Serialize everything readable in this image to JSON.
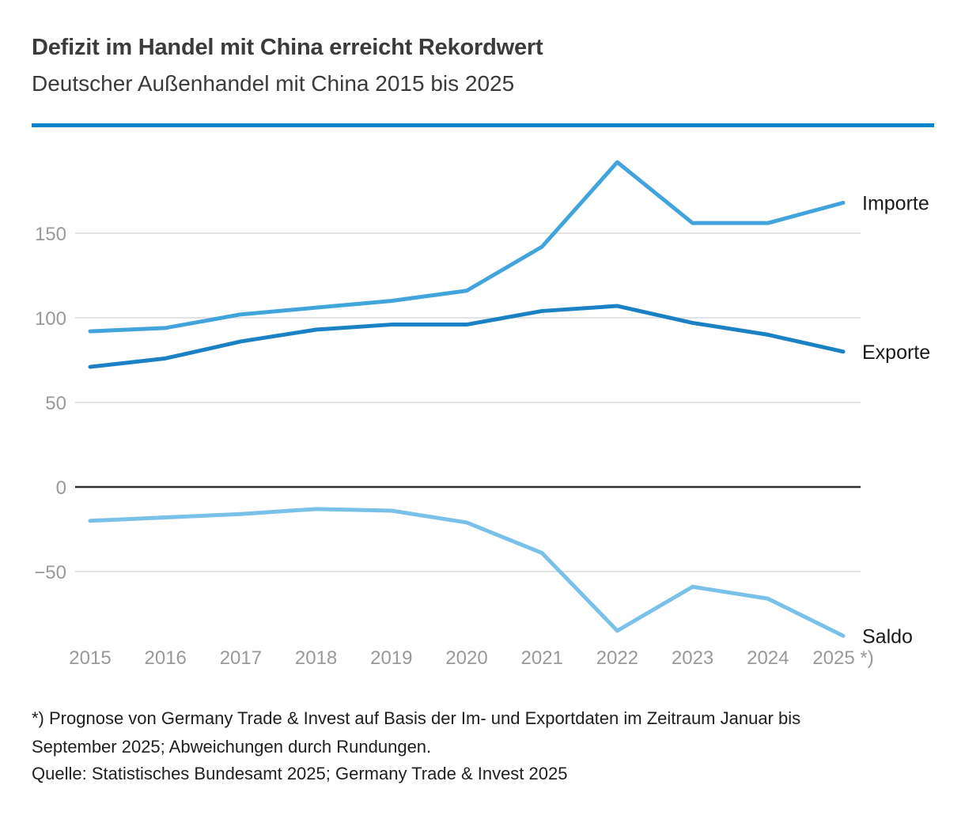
{
  "header": {
    "title": "Defizit im Handel mit China erreicht Rekordwert",
    "subtitle": "Deutscher Außenhandel mit China 2015 bis 2025"
  },
  "chart_data": {
    "type": "line",
    "categories": [
      "2015",
      "2016",
      "2017",
      "2018",
      "2019",
      "2020",
      "2021",
      "2022",
      "2023",
      "2024",
      "2025"
    ],
    "x_tick_labels": [
      "2015",
      "2016",
      "2017",
      "2018",
      "2019",
      "2020",
      "2021",
      "2022",
      "2023",
      "2024",
      "2025 *)"
    ],
    "y_ticks": [
      150,
      100,
      50,
      0,
      -50
    ],
    "ylim": [
      -100,
      200
    ],
    "grid": "horizontal-only",
    "zero_line": true,
    "legend_position": "line-end-labels-right",
    "series": [
      {
        "name": "Importe",
        "color": "#42a4dc",
        "values": [
          92,
          94,
          102,
          106,
          110,
          116,
          142,
          192,
          156,
          156,
          168
        ]
      },
      {
        "name": "Exporte",
        "color": "#1b81c5",
        "values": [
          71,
          76,
          86,
          93,
          96,
          96,
          104,
          107,
          97,
          90,
          80
        ]
      },
      {
        "name": "Saldo",
        "color": "#79c1e8",
        "values": [
          -20,
          -18,
          -16,
          -13,
          -14,
          -21,
          -39,
          -85,
          -59,
          -66,
          -88
        ]
      }
    ]
  },
  "footnote": "*) Prognose von Germany Trade & Invest auf Basis der Im- und Exportdaten im Zeitraum Januar bis September 2025; Abweichungen durch Rundungen.",
  "source": "Quelle: Statistisches Bundesamt 2025; Germany Trade & Invest 2025",
  "colors": {
    "accent_divider": "#0986c9",
    "grid_line": "#e2e2e2",
    "zero_line": "#2e2e2e",
    "axis_text": "#999999",
    "series_label_text": "#1a1a1a",
    "title_text": "#3b3b3b"
  }
}
